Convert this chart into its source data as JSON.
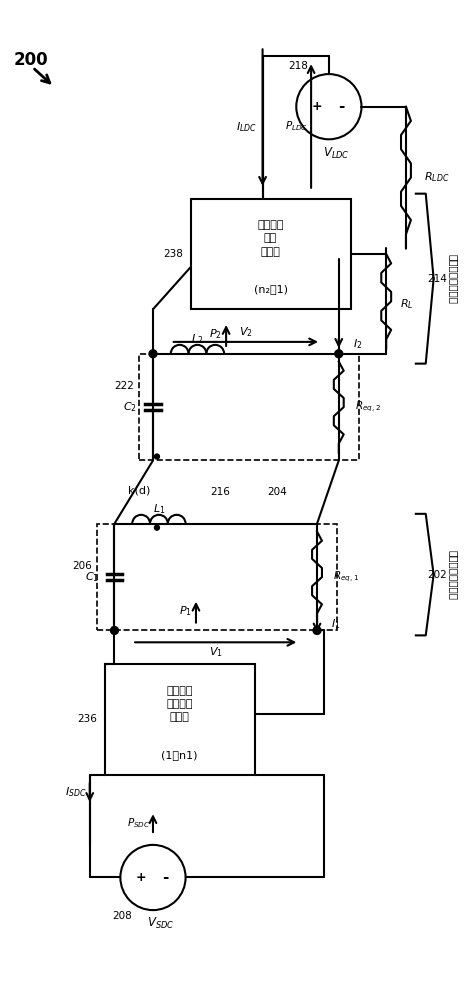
{
  "fig_width": 4.71,
  "fig_height": 10.0,
  "bg_color": "#ffffff",
  "line_color": "#000000",
  "label_200": "200",
  "label_202": "202",
  "label_204": "204",
  "label_206": "206",
  "label_208": "208",
  "label_214": "214",
  "label_216": "216",
  "label_218": "218",
  "label_222": "222",
  "label_236": "236",
  "label_238": "238"
}
